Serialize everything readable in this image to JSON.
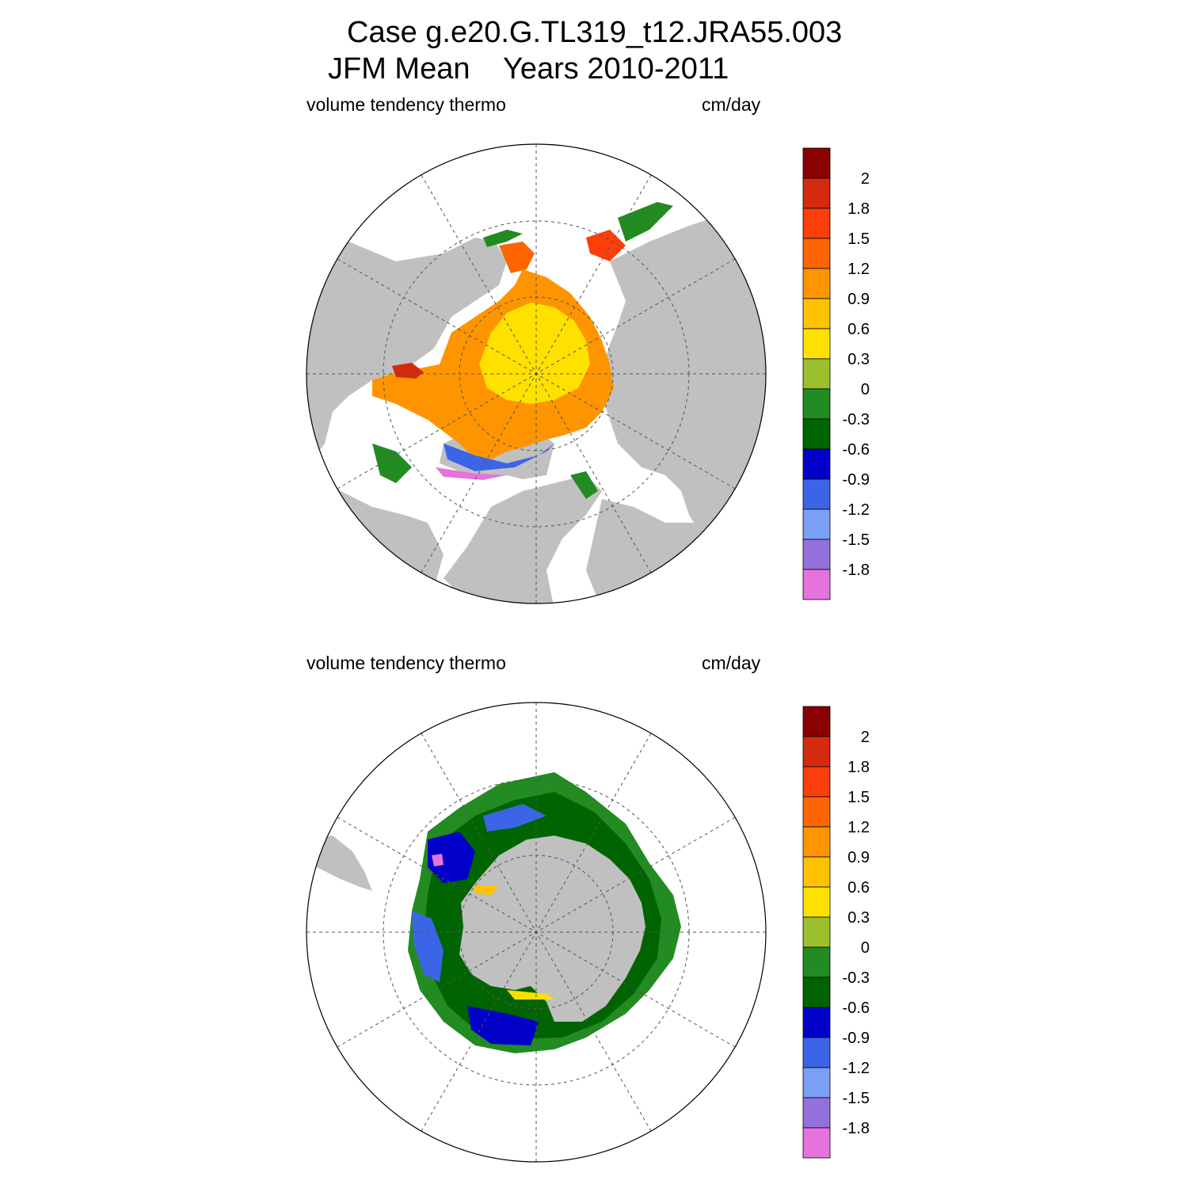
{
  "header": {
    "title_line1": "Case g.e20.G.TL319_t12.JRA55.003",
    "title_line2_left": "JFM Mean",
    "title_line2_right": "Years 2010-2011"
  },
  "panels": [
    {
      "hemisphere": "north",
      "left_label": "volume tendency thermo",
      "right_label": "cm/day"
    },
    {
      "hemisphere": "south",
      "left_label": "volume tendency thermo",
      "right_label": "cm/day"
    }
  ],
  "colorbar": {
    "labels": [
      "2",
      "1.8",
      "1.5",
      "1.2",
      "0.9",
      "0.6",
      "0.3",
      "0",
      "-0.3",
      "-0.6",
      "-0.9",
      "-1.2",
      "-1.5",
      "-1.8"
    ],
    "colors": [
      "#8b0000",
      "#d42a10",
      "#fb3e0a",
      "#fe6400",
      "#fe9500",
      "#ffc200",
      "#ffe100",
      "#9bbf2d",
      "#228b22",
      "#006400",
      "#0000c8",
      "#3c64e6",
      "#7b9ff5",
      "#9370db",
      "#e673dc"
    ]
  },
  "map_style": {
    "land_color": "#c0c0c0",
    "ocean_color": "#ffffff",
    "grid_color": "#555555"
  }
}
